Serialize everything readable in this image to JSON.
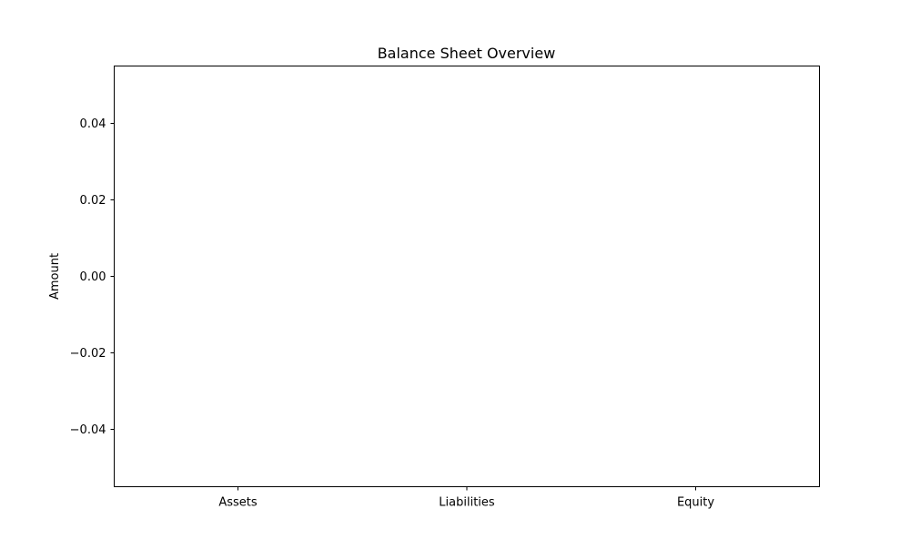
{
  "chart_data": {
    "type": "bar",
    "title": "Balance Sheet Overview",
    "xlabel": "",
    "ylabel": "Amount",
    "categories": [
      "Assets",
      "Liabilities",
      "Equity"
    ],
    "values": [
      0,
      0,
      0
    ],
    "ylim": [
      -0.055,
      0.055
    ],
    "yticks": [
      -0.04,
      -0.02,
      0.0,
      0.02,
      0.04
    ],
    "ytick_labels": [
      "−0.04",
      "−0.02",
      "0.00",
      "0.02",
      "0.04"
    ],
    "grid": false,
    "legend": "none",
    "colors": {
      "bar": "#1f77b4",
      "axis": "#000000",
      "background": "#ffffff"
    }
  }
}
